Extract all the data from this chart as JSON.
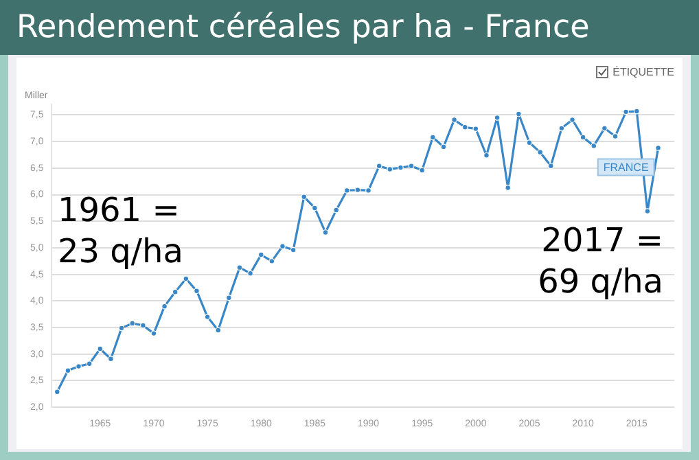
{
  "chart_data": {
    "type": "line",
    "title": "Rendement céréales par ha - France",
    "ylabel": "Miller",
    "x": [
      1961,
      1962,
      1963,
      1964,
      1965,
      1966,
      1967,
      1968,
      1969,
      1970,
      1971,
      1972,
      1973,
      1974,
      1975,
      1976,
      1977,
      1978,
      1979,
      1980,
      1981,
      1982,
      1983,
      1984,
      1985,
      1986,
      1987,
      1988,
      1989,
      1990,
      1991,
      1992,
      1993,
      1994,
      1995,
      1996,
      1997,
      1998,
      1999,
      2000,
      2001,
      2002,
      2003,
      2004,
      2005,
      2006,
      2007,
      2008,
      2009,
      2010,
      2011,
      2012,
      2013,
      2014,
      2015,
      2016,
      2017
    ],
    "series": [
      {
        "name": "FRANCE",
        "color": "#3a87c8",
        "values": [
          2.29,
          2.69,
          2.77,
          2.82,
          3.1,
          2.91,
          3.49,
          3.58,
          3.54,
          3.39,
          3.9,
          4.17,
          4.42,
          4.19,
          3.7,
          3.45,
          4.06,
          4.63,
          4.52,
          4.87,
          4.75,
          5.03,
          4.96,
          5.96,
          5.75,
          5.29,
          5.71,
          6.08,
          6.09,
          6.08,
          6.54,
          6.48,
          6.51,
          6.54,
          6.46,
          7.08,
          6.9,
          7.41,
          7.27,
          7.24,
          6.74,
          7.45,
          6.13,
          7.52,
          6.98,
          6.8,
          6.54,
          7.25,
          7.41,
          7.08,
          6.92,
          7.25,
          7.1,
          7.56,
          7.57,
          5.69,
          6.88
        ]
      }
    ],
    "xlim": [
      1960.5,
      2018.5
    ],
    "xticks": [
      1965,
      1970,
      1975,
      1980,
      1985,
      1990,
      1995,
      2000,
      2005,
      2010,
      2015
    ],
    "ylim": [
      2,
      7.7
    ],
    "yticks": [
      {
        "value": 2,
        "label": "2,0"
      },
      {
        "value": 2.5,
        "label": "2,5"
      },
      {
        "value": 3,
        "label": "3,0"
      },
      {
        "value": 3.5,
        "label": "3,5"
      },
      {
        "value": 4,
        "label": "4,0"
      },
      {
        "value": 4.5,
        "label": "4,5"
      },
      {
        "value": 5,
        "label": "5,0"
      },
      {
        "value": 5.5,
        "label": "5,5"
      },
      {
        "value": 6,
        "label": "6,0"
      },
      {
        "value": 6.5,
        "label": "6,5"
      },
      {
        "value": 7,
        "label": "7,0"
      },
      {
        "value": 7.5,
        "label": "7,5"
      }
    ],
    "grid": "y",
    "marker": "circle",
    "line_style": "solid",
    "annotations": [
      "1961 =\n23 q/ha",
      "2017 =\n69 q/ha",
      "ÉTIQUETTE"
    ]
  }
}
